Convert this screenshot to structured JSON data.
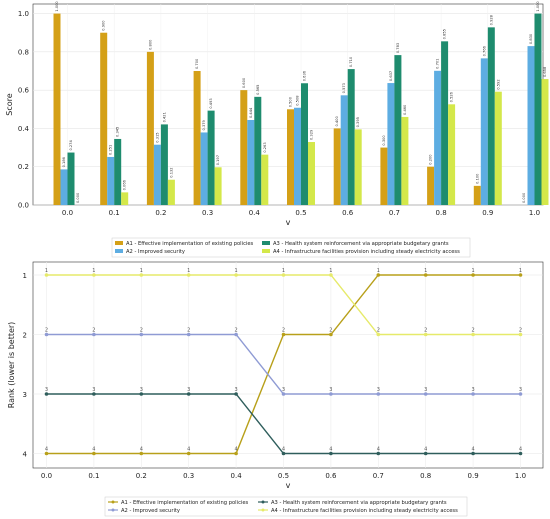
{
  "chart_data": [
    {
      "type": "bar",
      "xlabel": "v",
      "ylabel": "Score",
      "ylim": [
        0,
        1.05
      ],
      "yticks": [
        "0.0",
        "0.2",
        "0.4",
        "0.6",
        "0.8",
        "1.0"
      ],
      "grid": true,
      "legend_position": "bottom-center",
      "categories": [
        "0.0",
        "0.1",
        "0.2",
        "0.3",
        "0.4",
        "0.5",
        "0.6",
        "0.7",
        "0.8",
        "0.9",
        "1.0"
      ],
      "series": [
        {
          "name": "A1 - Effective implementation of existing policies",
          "color": "#d4a017",
          "values": [
            1.0,
            0.9,
            0.8,
            0.7,
            0.6,
            0.5,
            0.4,
            0.3,
            0.2,
            0.1,
            0.0
          ],
          "labels": [
            "1.000",
            "0.900",
            "0.800",
            "0.700",
            "0.600",
            "0.500",
            "0.400",
            "0.300",
            "0.200",
            "0.100",
            "0.000"
          ]
        },
        {
          "name": "A2 - Improved security",
          "color": "#5dade2",
          "values": [
            0.186,
            0.251,
            0.315,
            0.379,
            0.444,
            0.508,
            0.573,
            0.637,
            0.701,
            0.766,
            0.83
          ],
          "labels": [
            "0.186",
            "0.251",
            "0.315",
            "0.379",
            "0.444",
            "0.508",
            "0.573",
            "0.637",
            "0.701",
            "0.766",
            "0.830"
          ]
        },
        {
          "name": "A3 - Health system reinforcement via appropriate budgetary grants",
          "color": "#1e8c6e",
          "values": [
            0.274,
            0.345,
            0.421,
            0.493,
            0.565,
            0.636,
            0.71,
            0.783,
            0.855,
            0.928,
            1.0
          ],
          "labels": [
            "0.274",
            "0.345",
            "0.421",
            "0.493",
            "0.565",
            "0.636",
            "0.710",
            "0.783",
            "0.855",
            "0.928",
            "1.000"
          ]
        },
        {
          "name": "A4 - Infrastructure facilities provision including steady electricity access",
          "color": "#d4e84a",
          "values": [
            0.0,
            0.066,
            0.132,
            0.197,
            0.263,
            0.329,
            0.395,
            0.46,
            0.526,
            0.592,
            0.658
          ],
          "labels": [
            "0.000",
            "0.066",
            "0.132",
            "0.197",
            "0.263",
            "0.329",
            "0.395",
            "0.460",
            "0.526",
            "0.592",
            "0.658"
          ]
        }
      ]
    },
    {
      "type": "line",
      "xlabel": "v",
      "ylabel": "Rank (lower is better)",
      "ylim": [
        4,
        1
      ],
      "yticks": [
        "1",
        "2",
        "3",
        "4"
      ],
      "grid": true,
      "legend_position": "bottom-center",
      "x": [
        "0.0",
        "0.1",
        "0.2",
        "0.3",
        "0.4",
        "0.5",
        "0.6",
        "0.7",
        "0.8",
        "0.9",
        "1.0"
      ],
      "series": [
        {
          "name": "A1 - Effective implementation of existing policies",
          "color": "#b8a01a",
          "marker": "circle",
          "values": [
            4,
            4,
            4,
            4,
            4,
            2,
            2,
            1,
            1,
            1,
            1
          ]
        },
        {
          "name": "A2 - Improved security",
          "color": "#8f9bd4",
          "marker": "circle",
          "values": [
            2,
            2,
            2,
            2,
            2,
            3,
            3,
            3,
            3,
            3,
            3
          ]
        },
        {
          "name": "A3 - Health system reinforcement via appropriate budgetary grants",
          "color": "#2f5e5c",
          "marker": "circle",
          "values": [
            3,
            3,
            3,
            3,
            3,
            4,
            4,
            4,
            4,
            4,
            4
          ]
        },
        {
          "name": "A4 - Infrastructure facilities provision including steady electricity access",
          "color": "#e6ea6a",
          "marker": "circle",
          "values": [
            1,
            1,
            1,
            1,
            1,
            1,
            1,
            2,
            2,
            2,
            2
          ]
        }
      ]
    }
  ]
}
